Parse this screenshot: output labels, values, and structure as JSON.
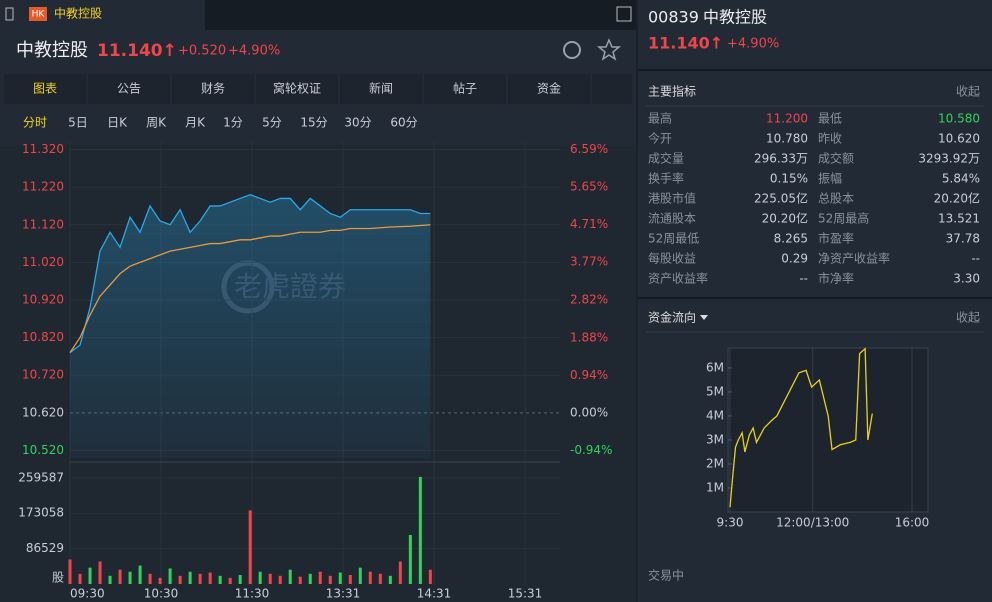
{
  "tab": {
    "badge": "HK",
    "title": "中教控股"
  },
  "header": {
    "name": "中教控股",
    "price": "11.140↑",
    "change": "+0.520",
    "pct": "+4.90%"
  },
  "tabs": [
    "图表",
    "公告",
    "财务",
    "窝轮权证",
    "新闻",
    "帖子",
    "资金"
  ],
  "periods": [
    "分时",
    "5日",
    "日K",
    "周K",
    "月K",
    "1分",
    "5分",
    "15分",
    "30分",
    "60分"
  ],
  "price_chart": {
    "type": "line",
    "watermark": "老虎證券",
    "ylim": [
      10.5,
      11.34
    ],
    "yticks": [
      {
        "value": 11.32,
        "label": "11.320"
      },
      {
        "value": 11.22,
        "label": "11.220"
      },
      {
        "value": 11.12,
        "label": "11.120"
      },
      {
        "value": 11.02,
        "label": "11.020"
      },
      {
        "value": 10.92,
        "label": "10.920"
      },
      {
        "value": 10.82,
        "label": "10.820"
      },
      {
        "value": 10.72,
        "label": "10.720"
      },
      {
        "value": 10.62,
        "label": "10.620"
      },
      {
        "value": 10.52,
        "label": "10.520"
      }
    ],
    "y2lim": [
      -1.13,
      6.78
    ],
    "y2ticks": [
      {
        "value": 6.59,
        "label": "6.59%"
      },
      {
        "value": 5.65,
        "label": "5.65%"
      },
      {
        "value": 4.71,
        "label": "4.71%"
      },
      {
        "value": 3.77,
        "label": "3.77%"
      },
      {
        "value": 2.82,
        "label": "2.82%"
      },
      {
        "value": 1.88,
        "label": "1.88%"
      },
      {
        "value": 0.94,
        "label": "0.94%"
      },
      {
        "value": 0,
        "label": "0.00%"
      },
      {
        "value": -0.94,
        "label": "-0.94%"
      }
    ],
    "xlim": [
      0,
      300
    ],
    "xticks": [
      {
        "value": 0,
        "label": "09:30"
      },
      {
        "value": 60,
        "label": "10:30"
      },
      {
        "value": 120,
        "label": "11:30"
      },
      {
        "value": 180,
        "label": "13:31"
      },
      {
        "value": 240,
        "label": "14:31"
      },
      {
        "value": 300,
        "label": "15:31"
      }
    ],
    "x": [
      0,
      6.6,
      13.2,
      19.8,
      26.4,
      33,
      39.6,
      46.2,
      52.8,
      59.4,
      66,
      72.6,
      79.2,
      85.8,
      92.4,
      99,
      105.6,
      112.2,
      118.8,
      125.4,
      132,
      138.6,
      145.2,
      151.8,
      158.4,
      165,
      171.6,
      178.2,
      184.8,
      191.4,
      198,
      204.6,
      211.2,
      217.8,
      224.4,
      231,
      237.6
    ],
    "series": [
      {
        "color": "#29a9e6",
        "values": [
          10.78,
          10.8,
          10.9,
          11.05,
          11.1,
          11.06,
          11.14,
          11.1,
          11.17,
          11.13,
          11.12,
          11.16,
          11.1,
          11.13,
          11.17,
          11.17,
          11.18,
          11.19,
          11.2,
          11.19,
          11.18,
          11.19,
          11.19,
          11.16,
          11.19,
          11.17,
          11.15,
          11.14,
          11.16,
          11.16,
          11.16,
          11.16,
          11.16,
          11.16,
          11.16,
          11.15,
          11.15
        ]
      },
      {
        "color": "#e89a3c",
        "values": [
          10.78,
          10.82,
          10.88,
          10.93,
          10.96,
          10.99,
          11.01,
          11.02,
          11.03,
          11.04,
          11.05,
          11.055,
          11.06,
          11.065,
          11.07,
          11.07,
          11.075,
          11.08,
          11.08,
          11.085,
          11.09,
          11.09,
          11.095,
          11.1,
          11.1,
          11.1,
          11.105,
          11.105,
          11.11,
          11.11,
          11.11,
          11.112,
          11.114,
          11.115,
          11.116,
          11.118,
          11.12
        ]
      }
    ]
  },
  "volume_chart": {
    "type": "bar",
    "unit_label": "股",
    "ylim": [
      0,
      298400
    ],
    "yticks": [
      259587,
      173058,
      86529
    ],
    "values": [
      60000,
      25000,
      40000,
      55000,
      20000,
      35000,
      30000,
      45000,
      25000,
      15000,
      38000,
      20000,
      30000,
      25000,
      28000,
      20000,
      15000,
      22000,
      180000,
      30000,
      25000,
      20000,
      35000,
      18000,
      25000,
      30000,
      20000,
      28000,
      22000,
      40000,
      30000,
      25000,
      20000,
      55000,
      120000,
      262000,
      35000
    ],
    "colors": [
      "#f0454a",
      "#f0454a",
      "#33d25a",
      "#f0454a",
      "#33d25a",
      "#f0454a",
      "#33d25a",
      "#33d25a",
      "#f0454a",
      "#f0454a",
      "#33d25a",
      "#f0454a",
      "#33d25a",
      "#f0454a",
      "#f0454a",
      "#33d25a",
      "#f0454a",
      "#33d25a",
      "#f0454a",
      "#33d25a",
      "#f0454a",
      "#f0454a",
      "#33d25a",
      "#f0454a",
      "#33d25a",
      "#f0454a",
      "#f0454a",
      "#33d25a",
      "#f0454a",
      "#33d25a",
      "#f0454a",
      "#f0454a",
      "#33d25a",
      "#f0454a",
      "#33d25a",
      "#33d25a",
      "#f0454a"
    ]
  },
  "quote": {
    "code": "00839",
    "name": "中教控股",
    "price": "11.140↑",
    "pct": "+4.90%"
  },
  "stats": {
    "title": "主要指标",
    "collapse": "收起",
    "rows": [
      [
        "最高",
        "11.200",
        "最低",
        "10.580"
      ],
      [
        "今开",
        "10.780",
        "昨收",
        "10.620"
      ],
      [
        "成交量",
        "296.33万",
        "成交额",
        "3293.92万"
      ],
      [
        "换手率",
        "0.15%",
        "振幅",
        "5.84%"
      ],
      [
        "港股市值",
        "225.05亿",
        "总股本",
        "20.20亿"
      ],
      [
        "流通股本",
        "20.20亿",
        "52周最高",
        "13.521"
      ],
      [
        "52周最低",
        "8.265",
        "市盈率",
        "37.78"
      ],
      [
        "每股收益",
        "0.29",
        "净资产收益率",
        "--"
      ],
      [
        "资产收益率",
        "--",
        "市净率",
        "3.30"
      ]
    ]
  },
  "flow": {
    "type": "line",
    "title": "资金流向",
    "collapse": "收起",
    "color": "#e6d21c",
    "xlim": [
      0,
      330
    ],
    "xticks": [
      {
        "value": 0,
        "label": "9:30"
      },
      {
        "value": 150,
        "label": "12:00/13:00"
      },
      {
        "value": 330,
        "label": "16:00"
      }
    ],
    "ylim": [
      0,
      6.83
    ],
    "yticks": [
      {
        "value": 1,
        "label": "1M"
      },
      {
        "value": 2,
        "label": "2M"
      },
      {
        "value": 3,
        "label": "3M"
      },
      {
        "value": 4,
        "label": "4M"
      },
      {
        "value": 5,
        "label": "5M"
      },
      {
        "value": 6,
        "label": "6M"
      }
    ],
    "x": [
      0,
      5,
      10,
      15,
      22,
      27,
      35,
      42,
      48,
      55,
      62,
      75,
      85,
      125,
      138,
      148,
      162,
      178,
      185,
      200,
      218,
      228,
      235,
      245,
      250,
      258
    ],
    "values": [
      0.2,
      1.5,
      2.7,
      3.0,
      3.3,
      2.5,
      3.2,
      3.5,
      2.9,
      3.2,
      3.5,
      3.8,
      4.0,
      5.8,
      5.9,
      5.2,
      5.5,
      4.0,
      2.6,
      2.8,
      2.9,
      3.0,
      6.6,
      6.8,
      3.0,
      4.1
    ]
  },
  "status": "交易中"
}
